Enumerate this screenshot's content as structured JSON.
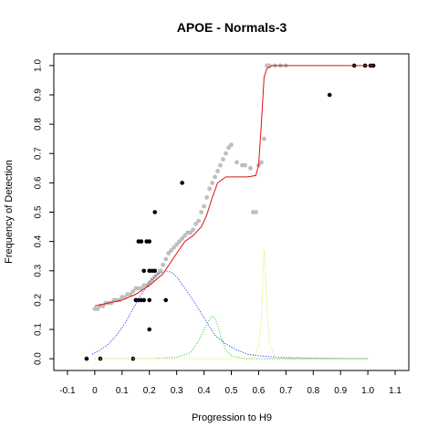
{
  "chart_data": {
    "type": "scatter",
    "title": "APOE - Normals-3",
    "xlabel": "Progression to H9",
    "ylabel": "Frequency of Detection",
    "xlim": [
      -0.15,
      1.15
    ],
    "ylim": [
      -0.04,
      1.04
    ],
    "x_ticks": [
      "-0.1",
      "0",
      "0.1",
      "0.2",
      "0.3",
      "0.4",
      "0.5",
      "0.6",
      "0.7",
      "0.8",
      "0.9",
      "1.0",
      "1.1"
    ],
    "y_ticks": [
      "0.0",
      "0.1",
      "0.2",
      "0.3",
      "0.4",
      "0.5",
      "0.6",
      "0.7",
      "0.8",
      "0.9",
      "1.0"
    ],
    "grid": false,
    "legend": "none",
    "colors": {
      "observed": "#000000",
      "smoothed": "#bebebe",
      "fit": "#e01010",
      "component_1": "#3a3ae8",
      "component_2": "#3ad03a",
      "component_3": "#e8e850"
    },
    "series": [
      {
        "kind": "points",
        "color_key": "observed",
        "points": [
          [
            -0.03,
            0.0
          ],
          [
            0.02,
            0.0
          ],
          [
            0.14,
            0.0
          ],
          [
            0.15,
            0.2
          ],
          [
            0.16,
            0.2
          ],
          [
            0.17,
            0.2
          ],
          [
            0.18,
            0.2
          ],
          [
            0.2,
            0.2
          ],
          [
            0.26,
            0.2
          ],
          [
            0.2,
            0.1
          ],
          [
            0.18,
            0.3
          ],
          [
            0.2,
            0.3
          ],
          [
            0.21,
            0.3
          ],
          [
            0.22,
            0.3
          ],
          [
            0.24,
            0.3
          ],
          [
            0.16,
            0.4
          ],
          [
            0.17,
            0.4
          ],
          [
            0.19,
            0.4
          ],
          [
            0.2,
            0.4
          ],
          [
            0.22,
            0.5
          ],
          [
            0.32,
            0.6
          ],
          [
            0.86,
            0.9
          ],
          [
            0.95,
            1.0
          ],
          [
            0.99,
            1.0
          ],
          [
            1.01,
            1.0
          ],
          [
            1.02,
            1.0
          ]
        ]
      },
      {
        "kind": "points",
        "color_key": "smoothed",
        "points": [
          [
            0.0,
            0.17
          ],
          [
            0.01,
            0.17
          ],
          [
            0.02,
            0.18
          ],
          [
            0.03,
            0.18
          ],
          [
            0.04,
            0.19
          ],
          [
            0.05,
            0.19
          ],
          [
            0.06,
            0.19
          ],
          [
            0.07,
            0.2
          ],
          [
            0.08,
            0.2
          ],
          [
            0.09,
            0.2
          ],
          [
            0.1,
            0.21
          ],
          [
            0.11,
            0.21
          ],
          [
            0.12,
            0.22
          ],
          [
            0.13,
            0.22
          ],
          [
            0.14,
            0.23
          ],
          [
            0.15,
            0.24
          ],
          [
            0.16,
            0.24
          ],
          [
            0.17,
            0.24
          ],
          [
            0.18,
            0.25
          ],
          [
            0.19,
            0.25
          ],
          [
            0.2,
            0.26
          ],
          [
            0.21,
            0.27
          ],
          [
            0.22,
            0.28
          ],
          [
            0.23,
            0.29
          ],
          [
            0.24,
            0.3
          ],
          [
            0.25,
            0.32
          ],
          [
            0.26,
            0.34
          ],
          [
            0.27,
            0.36
          ],
          [
            0.28,
            0.37
          ],
          [
            0.29,
            0.38
          ],
          [
            0.3,
            0.39
          ],
          [
            0.31,
            0.4
          ],
          [
            0.32,
            0.41
          ],
          [
            0.33,
            0.42
          ],
          [
            0.34,
            0.43
          ],
          [
            0.35,
            0.43
          ],
          [
            0.36,
            0.44
          ],
          [
            0.37,
            0.46
          ],
          [
            0.38,
            0.47
          ],
          [
            0.39,
            0.5
          ],
          [
            0.4,
            0.52
          ],
          [
            0.41,
            0.55
          ],
          [
            0.42,
            0.58
          ],
          [
            0.43,
            0.6
          ],
          [
            0.44,
            0.62
          ],
          [
            0.45,
            0.64
          ],
          [
            0.46,
            0.66
          ],
          [
            0.47,
            0.68
          ],
          [
            0.48,
            0.7
          ],
          [
            0.49,
            0.72
          ],
          [
            0.5,
            0.73
          ],
          [
            0.52,
            0.67
          ],
          [
            0.54,
            0.66
          ],
          [
            0.55,
            0.66
          ],
          [
            0.57,
            0.65
          ],
          [
            0.58,
            0.5
          ],
          [
            0.59,
            0.5
          ],
          [
            0.6,
            0.66
          ],
          [
            0.61,
            0.67
          ],
          [
            0.62,
            0.75
          ],
          [
            0.63,
            1.0
          ],
          [
            0.64,
            1.0
          ],
          [
            0.66,
            1.0
          ],
          [
            0.68,
            1.0
          ],
          [
            0.7,
            1.0
          ]
        ]
      },
      {
        "kind": "line",
        "style": "solid",
        "color_key": "fit",
        "x": [
          0.0,
          0.05,
          0.1,
          0.15,
          0.2,
          0.25,
          0.3,
          0.33,
          0.36,
          0.39,
          0.41,
          0.43,
          0.45,
          0.48,
          0.52,
          0.56,
          0.59,
          0.6,
          0.61,
          0.62,
          0.63,
          0.65,
          0.7,
          0.8,
          0.9,
          1.0,
          1.02
        ],
        "y": [
          0.18,
          0.19,
          0.2,
          0.22,
          0.25,
          0.29,
          0.36,
          0.4,
          0.42,
          0.45,
          0.49,
          0.55,
          0.6,
          0.62,
          0.62,
          0.62,
          0.625,
          0.66,
          0.8,
          0.96,
          0.99,
          1.0,
          1.0,
          1.0,
          1.0,
          1.0,
          1.0
        ]
      },
      {
        "kind": "line",
        "style": "dotted",
        "color_key": "component_1",
        "x": [
          -0.01,
          0.02,
          0.05,
          0.08,
          0.11,
          0.14,
          0.17,
          0.2,
          0.23,
          0.26,
          0.28,
          0.3,
          0.33,
          0.36,
          0.4,
          0.44,
          0.48,
          0.52,
          0.56,
          0.6,
          0.65,
          0.7,
          0.8,
          0.9,
          1.0
        ],
        "y": [
          0.015,
          0.03,
          0.05,
          0.08,
          0.12,
          0.17,
          0.22,
          0.26,
          0.29,
          0.3,
          0.295,
          0.28,
          0.24,
          0.2,
          0.14,
          0.08,
          0.05,
          0.03,
          0.015,
          0.01,
          0.006,
          0.004,
          0.002,
          0.001,
          0.0
        ]
      },
      {
        "kind": "line",
        "style": "dotted",
        "color_key": "component_2",
        "x": [
          0.0,
          0.2,
          0.3,
          0.35,
          0.38,
          0.4,
          0.42,
          0.43,
          0.44,
          0.45,
          0.46,
          0.48,
          0.5,
          0.55,
          0.6,
          0.7,
          0.8,
          1.0
        ],
        "y": [
          0.0,
          0.0,
          0.005,
          0.02,
          0.06,
          0.1,
          0.135,
          0.145,
          0.14,
          0.115,
          0.08,
          0.03,
          0.01,
          0.0,
          0.0,
          0.0,
          0.0,
          0.0
        ]
      },
      {
        "kind": "line",
        "style": "dotted",
        "color_key": "component_3",
        "x": [
          0.0,
          0.4,
          0.55,
          0.58,
          0.6,
          0.61,
          0.615,
          0.62,
          0.625,
          0.63,
          0.64,
          0.66,
          0.7,
          0.8,
          1.0
        ],
        "y": [
          0.0,
          0.0,
          0.0,
          0.005,
          0.04,
          0.14,
          0.26,
          0.37,
          0.3,
          0.18,
          0.05,
          0.005,
          0.0,
          0.0,
          0.0
        ]
      }
    ]
  }
}
